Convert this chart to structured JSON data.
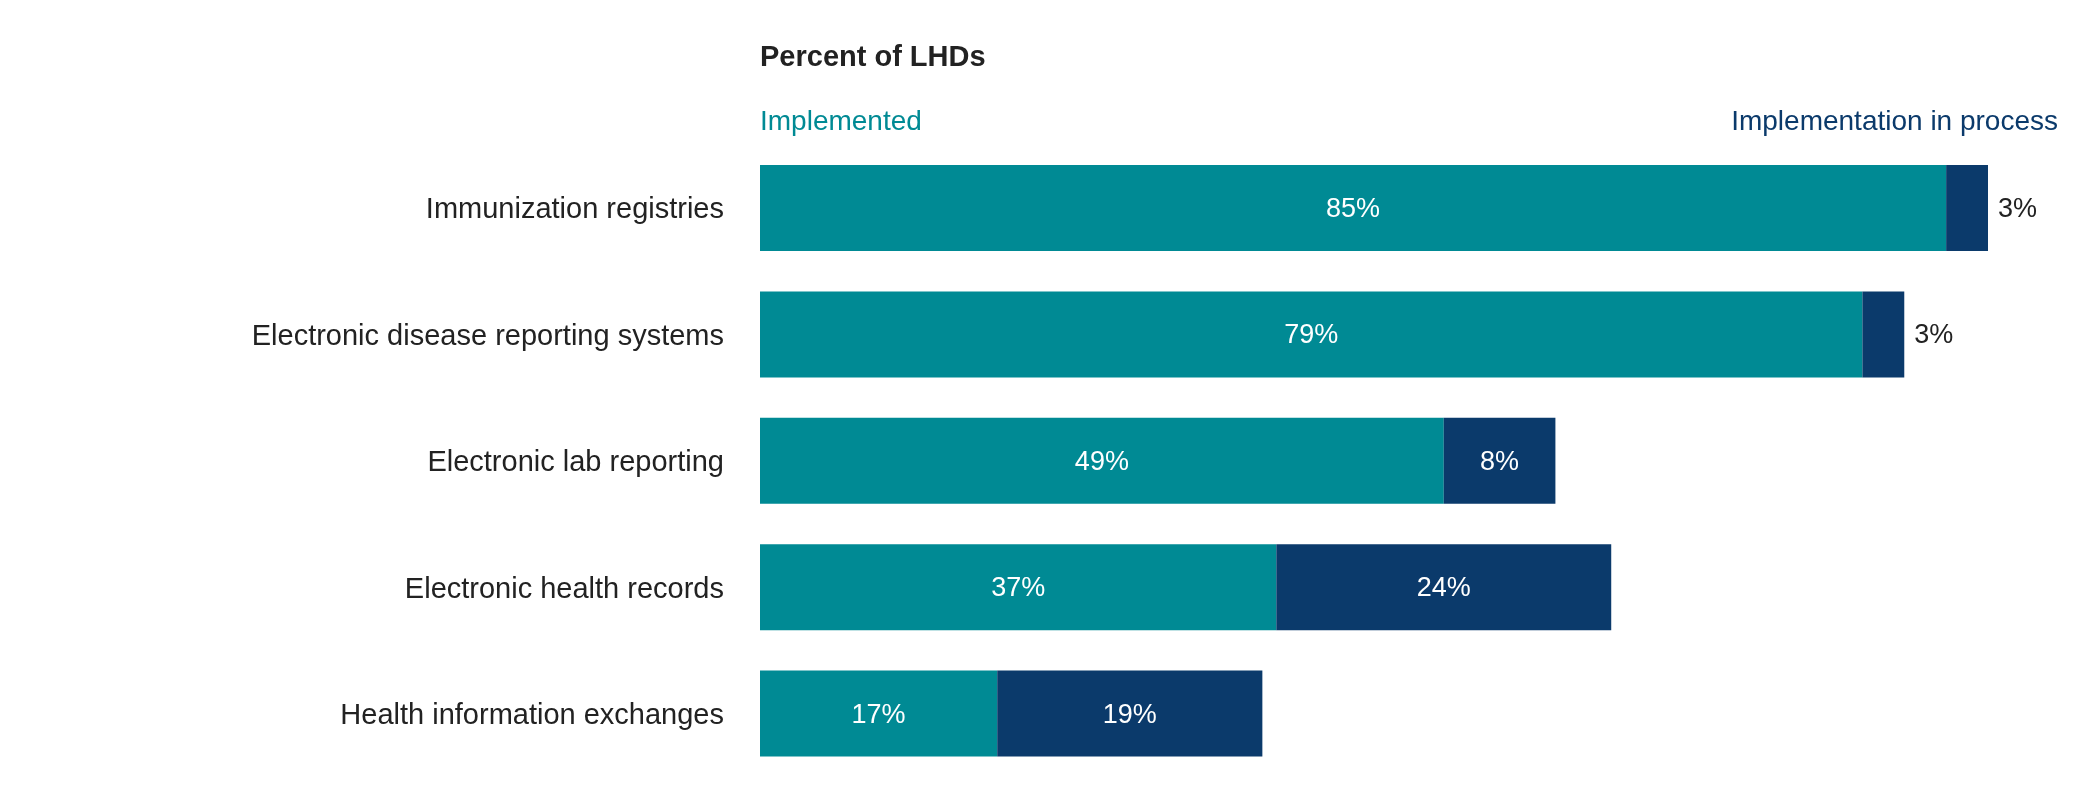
{
  "chart_data": {
    "type": "bar",
    "orientation": "horizontal",
    "stacked": true,
    "title": "Percent of LHDs",
    "categories": [
      "Immunization registries",
      "Electronic disease reporting systems",
      "Electronic lab reporting",
      "Electronic health records",
      "Health information exchanges"
    ],
    "series": [
      {
        "name": "Implemented",
        "color": "#008a94",
        "values": [
          85,
          79,
          49,
          37,
          17
        ],
        "value_labels": [
          "85%",
          "79%",
          "49%",
          "37%",
          "17%"
        ]
      },
      {
        "name": "Implementation in process",
        "color": "#0b3a6b",
        "values": [
          3,
          3,
          8,
          24,
          19
        ],
        "value_labels": [
          "3%",
          "3%",
          "8%",
          "24%",
          "19%"
        ]
      }
    ],
    "legend": "top"
  }
}
